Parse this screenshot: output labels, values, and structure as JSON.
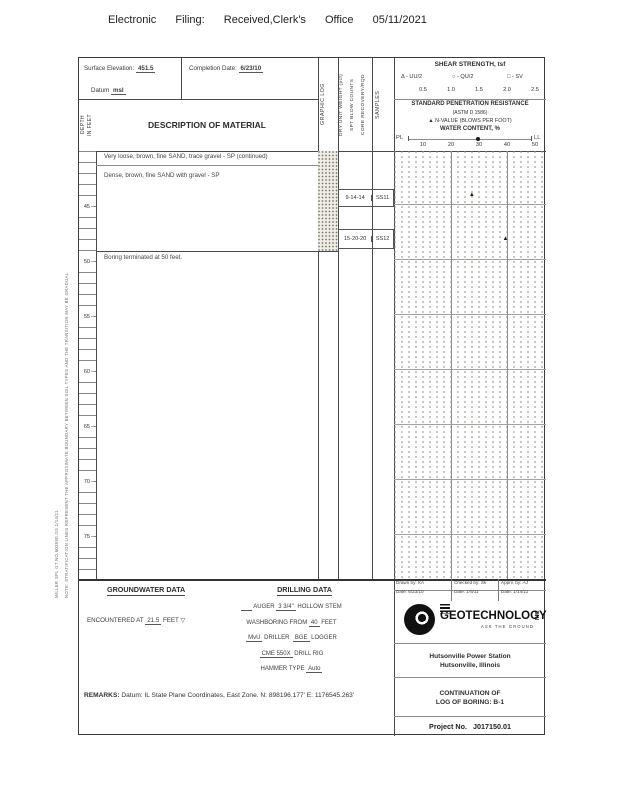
{
  "page_header": {
    "text": "Electronic Filing: Received,Clerk's Office 05/11/2021"
  },
  "top_info": {
    "surface_elevation_label": "Surface Elevation:",
    "surface_elevation_value": "451.5",
    "datum_label": "Datum",
    "datum_value": "msl",
    "completion_date_label": "Completion Date:",
    "completion_date_value": "6/23/10"
  },
  "columns": {
    "depth_line1": "DEPTH",
    "depth_line2": "IN FEET",
    "description_header": "DESCRIPTION OF MATERIAL",
    "graphic_log_header": "GRAPHIC LOG",
    "measure_lines": [
      "DRY UNIT WEIGHT (pcf)",
      "SPT BLOW COUNTS",
      "CORE RECOVERY/RQD"
    ],
    "samples_header": "SAMPLES"
  },
  "plot_header": {
    "shear_title": "SHEAR STRENGTH, tsf",
    "legend": [
      {
        "symbol": "Δ",
        "label": "- UU/2"
      },
      {
        "symbol": "○",
        "label": "- QU/2"
      },
      {
        "symbol": "□",
        "label": "- SV"
      }
    ],
    "shear_scale": [
      "0.5",
      "1.0",
      "1.5",
      "2.0",
      "2.5"
    ],
    "spr_title": "STANDARD PENETRATION RESISTANCE",
    "spr_sub": "(ASTM D 1586)",
    "nvalue_symbol": "▲",
    "nvalue_text": "N-VALUE (BLOWS PER FOOT)",
    "water_text": "WATER CONTENT, %",
    "pl_label": "PL",
    "ll_label": "LL",
    "axis_ticks": [
      "10",
      "20",
      "30",
      "40",
      "50"
    ]
  },
  "log": {
    "depth_labels": [
      "45",
      "50",
      "55",
      "60",
      "65",
      "70",
      "75"
    ],
    "strata": [
      {
        "description": "Very loose, brown, fine SAND, trace gravel - SP (continued)"
      },
      {
        "description": "Dense, brown, fine SAND with gravel - SP"
      }
    ],
    "termination_note": "Boring terminated at 50 feet.",
    "samples": [
      {
        "blows": "9-14-14",
        "id": "SS11"
      },
      {
        "blows": "15-20-20",
        "id": "SS12"
      }
    ]
  },
  "chart_data": {
    "type": "scatter",
    "title": "STANDARD PENETRATION RESISTANCE / WATER CONTENT, %",
    "xlabel": "N-VALUE (BLOWS PER FOOT)",
    "ylabel": "DEPTH IN FEET",
    "x_ticks": [
      10,
      20,
      30,
      40,
      50
    ],
    "xlim": [
      0,
      54
    ],
    "ylim_depth": [
      40,
      79
    ],
    "grid": "dotted with solid verticals at 20 and 40, solid horizontals every 5 ft",
    "series": [
      {
        "name": "N-VALUE (BLOWS PER FOOT)",
        "marker": "filled-triangle",
        "points": [
          {
            "depth_ft": 44,
            "value": 28
          },
          {
            "depth_ft": 48,
            "value": 40
          }
        ]
      }
    ]
  },
  "groundwater": {
    "title": "GROUNDWATER DATA",
    "encountered_prefix": "ENCOUNTERED AT",
    "encountered_value": "21.5",
    "encountered_suffix": "FEET",
    "symbol": "▽"
  },
  "drilling": {
    "title": "DRILLING DATA",
    "lines": [
      [
        [
          "    ",
          1
        ],
        [
          " AUGER ",
          0
        ],
        [
          "3 3/4\"",
          1
        ],
        [
          " HOLLOW STEM",
          0
        ]
      ],
      [
        [
          "WASHBORING FROM ",
          0
        ],
        [
          "40",
          1
        ],
        [
          " FEET",
          0
        ]
      ],
      [
        [
          "MvU",
          1
        ],
        [
          " DRILLER  ",
          0
        ],
        [
          "BGE",
          1
        ],
        [
          " LOGGER",
          0
        ]
      ],
      [
        [
          "CME 550X",
          1
        ],
        [
          " DRILL RIG",
          0
        ]
      ],
      [
        [
          "HAMMER TYPE ",
          0
        ],
        [
          "Auto",
          1
        ]
      ]
    ]
  },
  "remarks": {
    "label": "REMARKS:",
    "text": "Datum: IL State Plane Coordinates, East Zone.  N: 898196.177' E: 1176545.263'"
  },
  "signoff": {
    "cells": [
      {
        "label": "Drawn by:",
        "value": "KA",
        "date_label": "Date:",
        "date": "6/23/10"
      },
      {
        "label": "Checked by:",
        "value": "Sk",
        "date_label": "Date:",
        "date": "1/5/11"
      },
      {
        "label": "Apprv. by:",
        "value": "AJ",
        "date_label": "Date:",
        "date": "1/14/11"
      }
    ]
  },
  "branding": {
    "logo_text": "GEOTECHNOLOGY",
    "logo_suffix": "INC",
    "tagline": "ASK THE GROUND",
    "site_line1": "Hutsonville Power Station",
    "site_line2": "Hutsonville, Illinois",
    "continuation_line1": "CONTINUATION OF",
    "continuation_line2": "LOG OF BORING:  B-1",
    "project_label": "Project No.",
    "project_number": "J017150.01"
  },
  "margin_notes": {
    "line1": "NOTE: STRATIFICATION LINES REPRESENT THE APPROXIMATE BOUNDARY BETWEEN SOIL TYPES AND THE TRANSITION MAY BE GRADUAL.",
    "line2": "MILLER SPL GT NO.603990 GS 1/14/11"
  }
}
